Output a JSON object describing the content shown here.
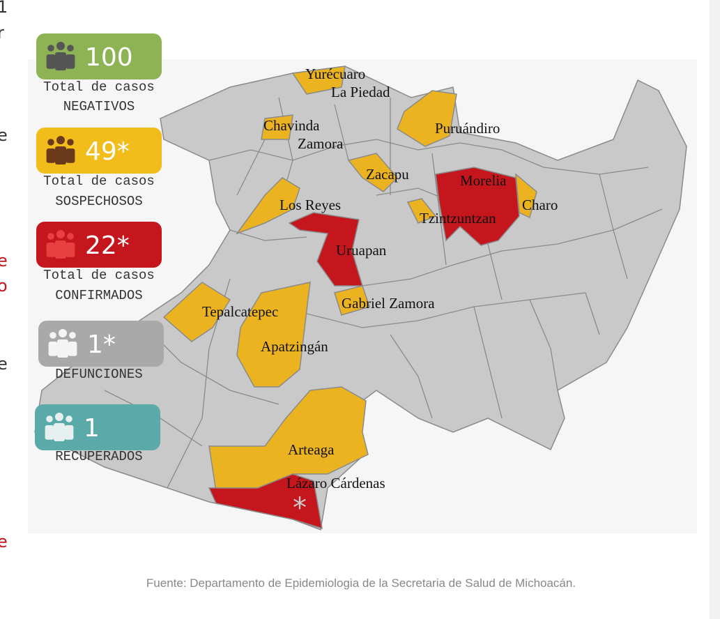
{
  "edge_fragments": [
    "1",
    "r",
    "e",
    "e",
    "o",
    "e",
    "e"
  ],
  "stats": [
    {
      "value": "100",
      "label": "Total de casos",
      "sublabel": "NEGATIVOS"
    },
    {
      "value": "49*",
      "label": "Total de casos",
      "sublabel": "SOSPECHOSOS"
    },
    {
      "value": "22*",
      "label": "Total de casos",
      "sublabel": "CONFIRMADOS"
    },
    {
      "value": "1*",
      "sublabel": "DEFUNCIONES"
    },
    {
      "value": "1",
      "sublabel": "RECUPERADOS"
    }
  ],
  "map_labels": [
    "Yurécuaro",
    "La Piedad",
    "Chavinda",
    "Zamora",
    "Puruándiro",
    "Zacapu",
    "Morelia",
    "Los Reyes",
    "Charo",
    "Tzintzuntzan",
    "Uruapan",
    "Gabriel Zamora",
    "Tepalcatepec",
    "Apatzingán",
    "Arteaga",
    "Lázaro Cárdenas"
  ],
  "marker": "*",
  "source": "Fuente: Departamento de Epidemiologia de la Secretaria de Salud de Michoacán."
}
